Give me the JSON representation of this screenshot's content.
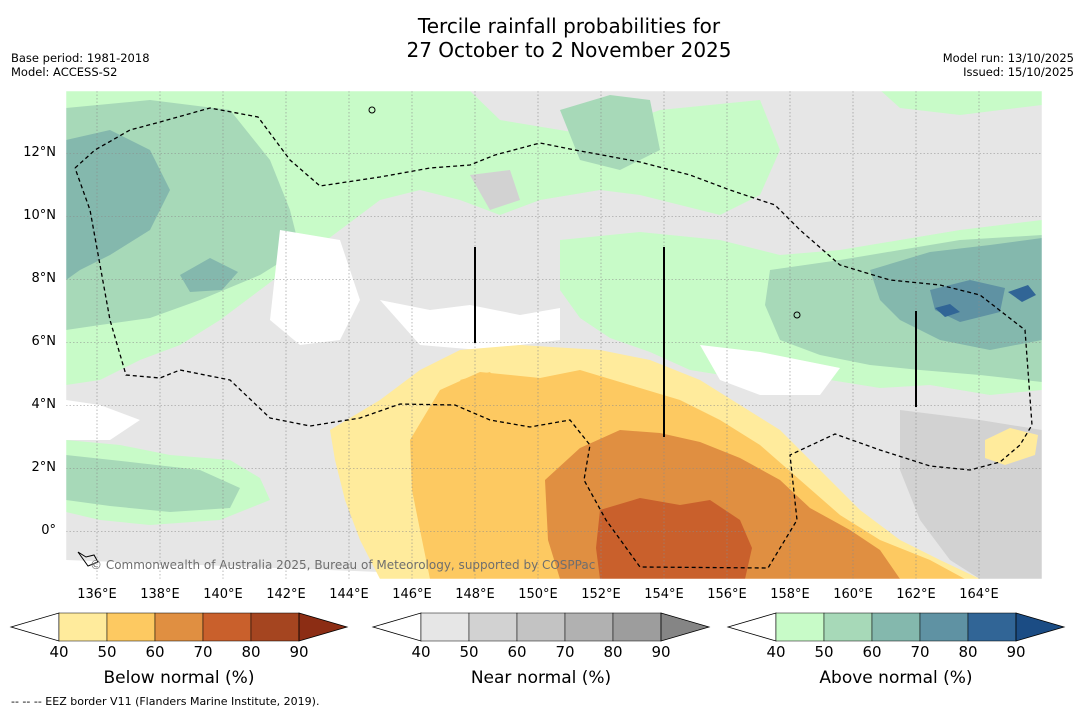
{
  "title": {
    "line1": "Tercile rainfall probabilities for",
    "line2": "27 October to 2 November 2025"
  },
  "meta": {
    "base_period": "Base period: 1981-2018",
    "model": "Model: ACCESS-S2",
    "model_run": "Model run: 13/10/2025",
    "issued": "Issued: 15/10/2025"
  },
  "axes": {
    "lat_labels": [
      "12°N",
      "10°N",
      "8°N",
      "6°N",
      "4°N",
      "2°N",
      "0°"
    ],
    "lon_labels": [
      "136°E",
      "138°E",
      "140°E",
      "142°E",
      "144°E",
      "146°E",
      "148°E",
      "150°E",
      "152°E",
      "154°E",
      "156°E",
      "158°E",
      "160°E",
      "162°E",
      "164°E"
    ]
  },
  "legends": [
    {
      "name": "below",
      "title": "Below normal (%)",
      "ticks": [
        "40",
        "50",
        "60",
        "70",
        "80",
        "90"
      ],
      "colors": [
        "#ffeb9c",
        "#fdc961",
        "#e08f41",
        "#c9602c",
        "#a54520",
        "#8c2d14"
      ]
    },
    {
      "name": "near",
      "title": "Near normal (%)",
      "ticks": [
        "40",
        "50",
        "60",
        "70",
        "80",
        "90"
      ],
      "colors": [
        "#e6e6e6",
        "#d2d2d2",
        "#c3c3c3",
        "#b1b1b1",
        "#9d9d9d",
        "#858585"
      ]
    },
    {
      "name": "above",
      "title": "Above normal (%)",
      "ticks": [
        "40",
        "50",
        "60",
        "70",
        "80",
        "90"
      ],
      "colors": [
        "#c8fbc8",
        "#a7d9b8",
        "#84b8ad",
        "#5f92a3",
        "#316596",
        "#1b4c84"
      ]
    }
  ],
  "copyright": "© Commonwealth of Australia 2025, Bureau of Meteorology, supported by COSPPac",
  "footer": "--  --  -- EEZ border V11 (Flanders Marine Institute, 2019)."
}
